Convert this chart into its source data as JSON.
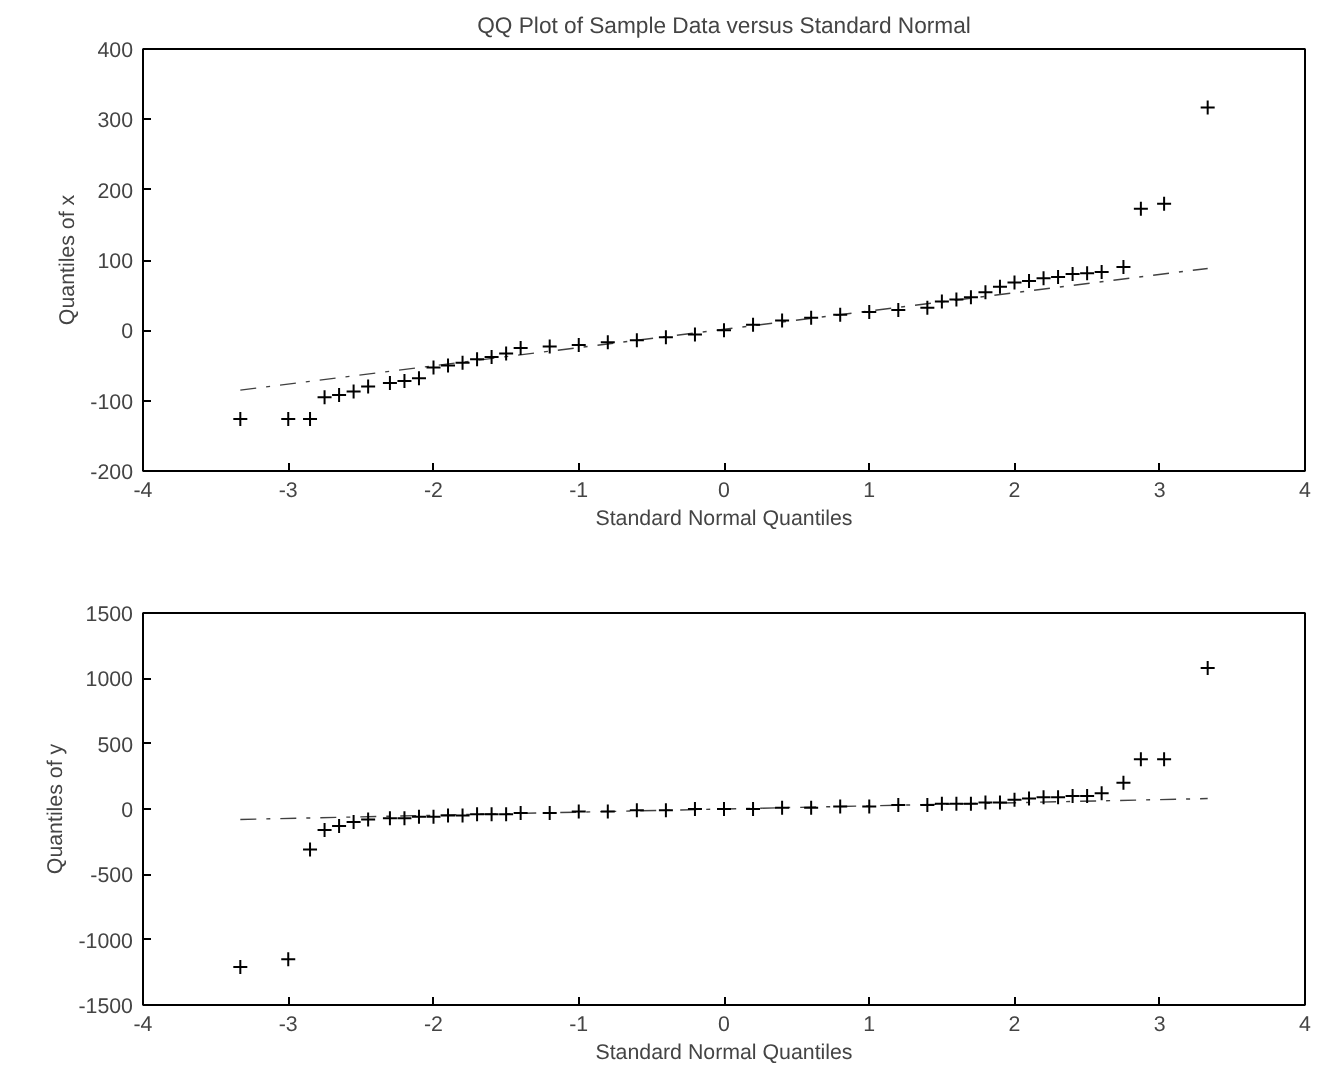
{
  "chart_data": [
    {
      "type": "scatter",
      "title": "QQ Plot of Sample Data versus Standard Normal",
      "xlabel": "Standard Normal Quantiles",
      "ylabel": "Quantiles of x",
      "xlim": [
        -4,
        4
      ],
      "ylim": [
        -200,
        400
      ],
      "xticks": [
        -4,
        -3,
        -2,
        -1,
        0,
        1,
        2,
        3,
        4
      ],
      "yticks": [
        -200,
        -100,
        0,
        100,
        200,
        300,
        400
      ],
      "grid": false,
      "series": [
        {
          "type": "line",
          "line_style": "dashed",
          "color": "#404040",
          "x": [
            -3.33,
            3.33
          ],
          "values": [
            -85,
            88
          ]
        },
        {
          "marker": "cross",
          "color": "#000000",
          "x": [
            -3.33,
            -3.0,
            -2.85,
            -2.75,
            -2.65,
            -2.55,
            -2.45,
            -2.3,
            -2.2,
            -2.1,
            -2.0,
            -1.9,
            -1.8,
            -1.7,
            -1.6,
            -1.5,
            -1.4,
            -1.2,
            -1.0,
            -0.8,
            -0.6,
            -0.4,
            -0.2,
            0,
            0.2,
            0.4,
            0.6,
            0.8,
            1.0,
            1.2,
            1.4,
            1.5,
            1.6,
            1.7,
            1.8,
            1.9,
            2.0,
            2.1,
            2.2,
            2.3,
            2.4,
            2.5,
            2.6,
            2.75,
            2.87,
            3.03,
            3.33
          ],
          "values": [
            -126,
            -126,
            -126,
            -95,
            -92,
            -87,
            -80,
            -75,
            -72,
            -68,
            -53,
            -50,
            -46,
            -41,
            -38,
            -33,
            -25,
            -23,
            -21,
            -17,
            -14,
            -10,
            -6,
            0,
            8,
            14,
            18,
            22,
            26,
            29,
            32,
            41,
            44,
            47,
            54,
            62,
            68,
            70,
            74,
            76,
            80,
            81,
            83,
            90,
            173,
            180,
            317
          ]
        }
      ]
    },
    {
      "type": "scatter",
      "xlabel": "Standard Normal Quantiles",
      "ylabel": "Quantiles of y",
      "xlim": [
        -4,
        4
      ],
      "ylim": [
        -1500,
        1500
      ],
      "xticks": [
        -4,
        -3,
        -2,
        -1,
        0,
        1,
        2,
        3,
        4
      ],
      "yticks": [
        -1500,
        -1000,
        -500,
        0,
        500,
        1000,
        1500
      ],
      "grid": false,
      "series": [
        {
          "type": "line",
          "line_style": "dashed",
          "color": "#404040",
          "x": [
            -3.33,
            3.33
          ],
          "values": [
            -80,
            80
          ]
        },
        {
          "marker": "cross",
          "color": "#000000",
          "x": [
            -3.33,
            -3.0,
            -2.85,
            -2.75,
            -2.65,
            -2.55,
            -2.45,
            -2.3,
            -2.2,
            -2.1,
            -2.0,
            -1.9,
            -1.8,
            -1.7,
            -1.6,
            -1.5,
            -1.4,
            -1.2,
            -1.0,
            -0.8,
            -0.6,
            -0.4,
            -0.2,
            0,
            0.2,
            0.4,
            0.6,
            0.8,
            1.0,
            1.2,
            1.4,
            1.5,
            1.6,
            1.7,
            1.8,
            1.9,
            2.0,
            2.1,
            2.2,
            2.3,
            2.4,
            2.5,
            2.6,
            2.75,
            2.87,
            3.03,
            3.33
          ],
          "values": [
            -1210,
            -1150,
            -310,
            -160,
            -130,
            -100,
            -80,
            -70,
            -70,
            -60,
            -60,
            -50,
            -50,
            -40,
            -40,
            -40,
            -30,
            -30,
            -20,
            -20,
            -10,
            -10,
            0,
            0,
            0,
            10,
            10,
            20,
            20,
            30,
            30,
            40,
            40,
            40,
            50,
            50,
            70,
            80,
            90,
            90,
            100,
            100,
            120,
            200,
            380,
            380,
            1080
          ]
        }
      ]
    }
  ]
}
